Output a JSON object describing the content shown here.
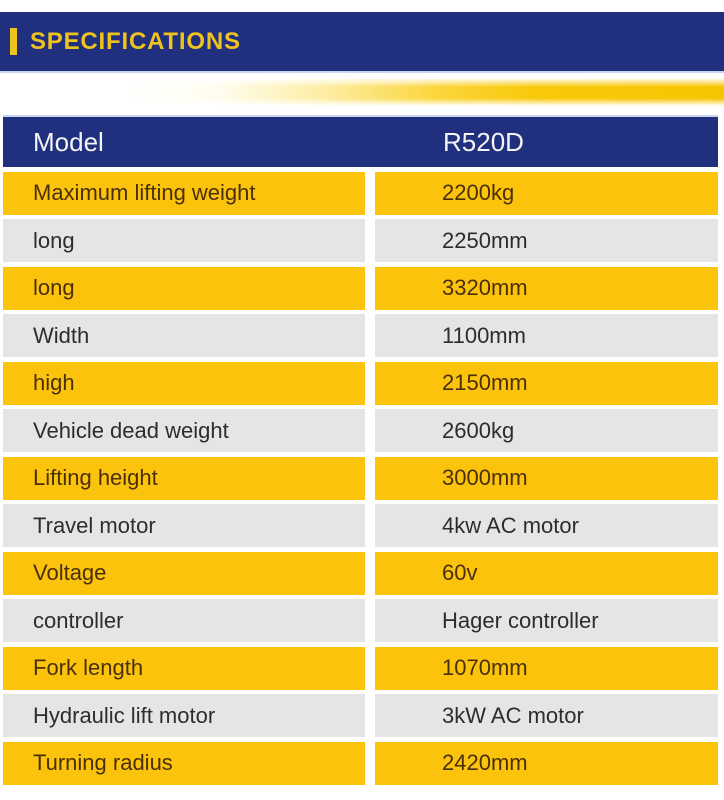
{
  "header": {
    "title": "SPECIFICATIONS",
    "background": "#20307f",
    "accent_color": "#eec31d"
  },
  "divider": {
    "gradient_from": "#ffffff",
    "gradient_to": "#f7c400"
  },
  "table": {
    "header": {
      "label": "Model",
      "value": "R520D",
      "background": "#20307f",
      "text_color": "#f4f4f4"
    },
    "row_colors": {
      "odd_bg": "#fcc30d",
      "odd_text": "#4a3009",
      "even_bg": "#e6e5e6",
      "even_text": "#2d2d2d"
    },
    "rows": [
      {
        "label": "Maximum lifting weight",
        "value": "2200kg"
      },
      {
        "label": "long",
        "value": "2250mm"
      },
      {
        "label": "long",
        "value": "3320mm"
      },
      {
        "label": "Width",
        "value": "1100mm"
      },
      {
        "label": "high",
        "value": "2150mm"
      },
      {
        "label": "Vehicle dead weight",
        "value": "2600kg"
      },
      {
        "label": "Lifting height",
        "value": "3000mm"
      },
      {
        "label": "Travel motor",
        "value": "4kw AC motor"
      },
      {
        "label": "Voltage",
        "value": "60v"
      },
      {
        "label": "controller",
        "value": "Hager controller"
      },
      {
        "label": "Fork length",
        "value": "1070mm"
      },
      {
        "label": "Hydraulic lift motor",
        "value": "3kW AC motor"
      },
      {
        "label": "Turning radius",
        "value": "2420mm"
      }
    ]
  }
}
